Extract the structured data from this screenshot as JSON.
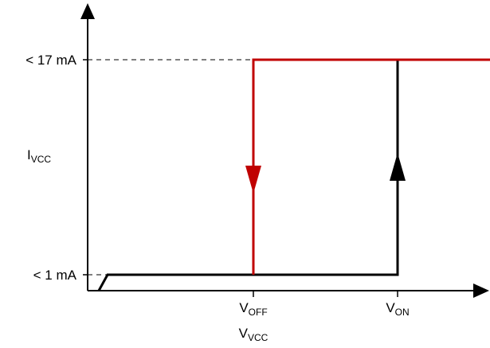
{
  "diagram": {
    "y_label_main": "I",
    "y_label_sub": "VCC",
    "x_label_main": "V",
    "x_label_sub": "VCC",
    "level_high": "< 17 mA",
    "level_low": "< 1 mA",
    "v_off_main": "V",
    "v_off_sub": "OFF",
    "v_on_main": "V",
    "v_on_sub": "ON"
  },
  "colors": {
    "turn_off_path": "#c00000",
    "turn_on_path": "#000000"
  }
}
